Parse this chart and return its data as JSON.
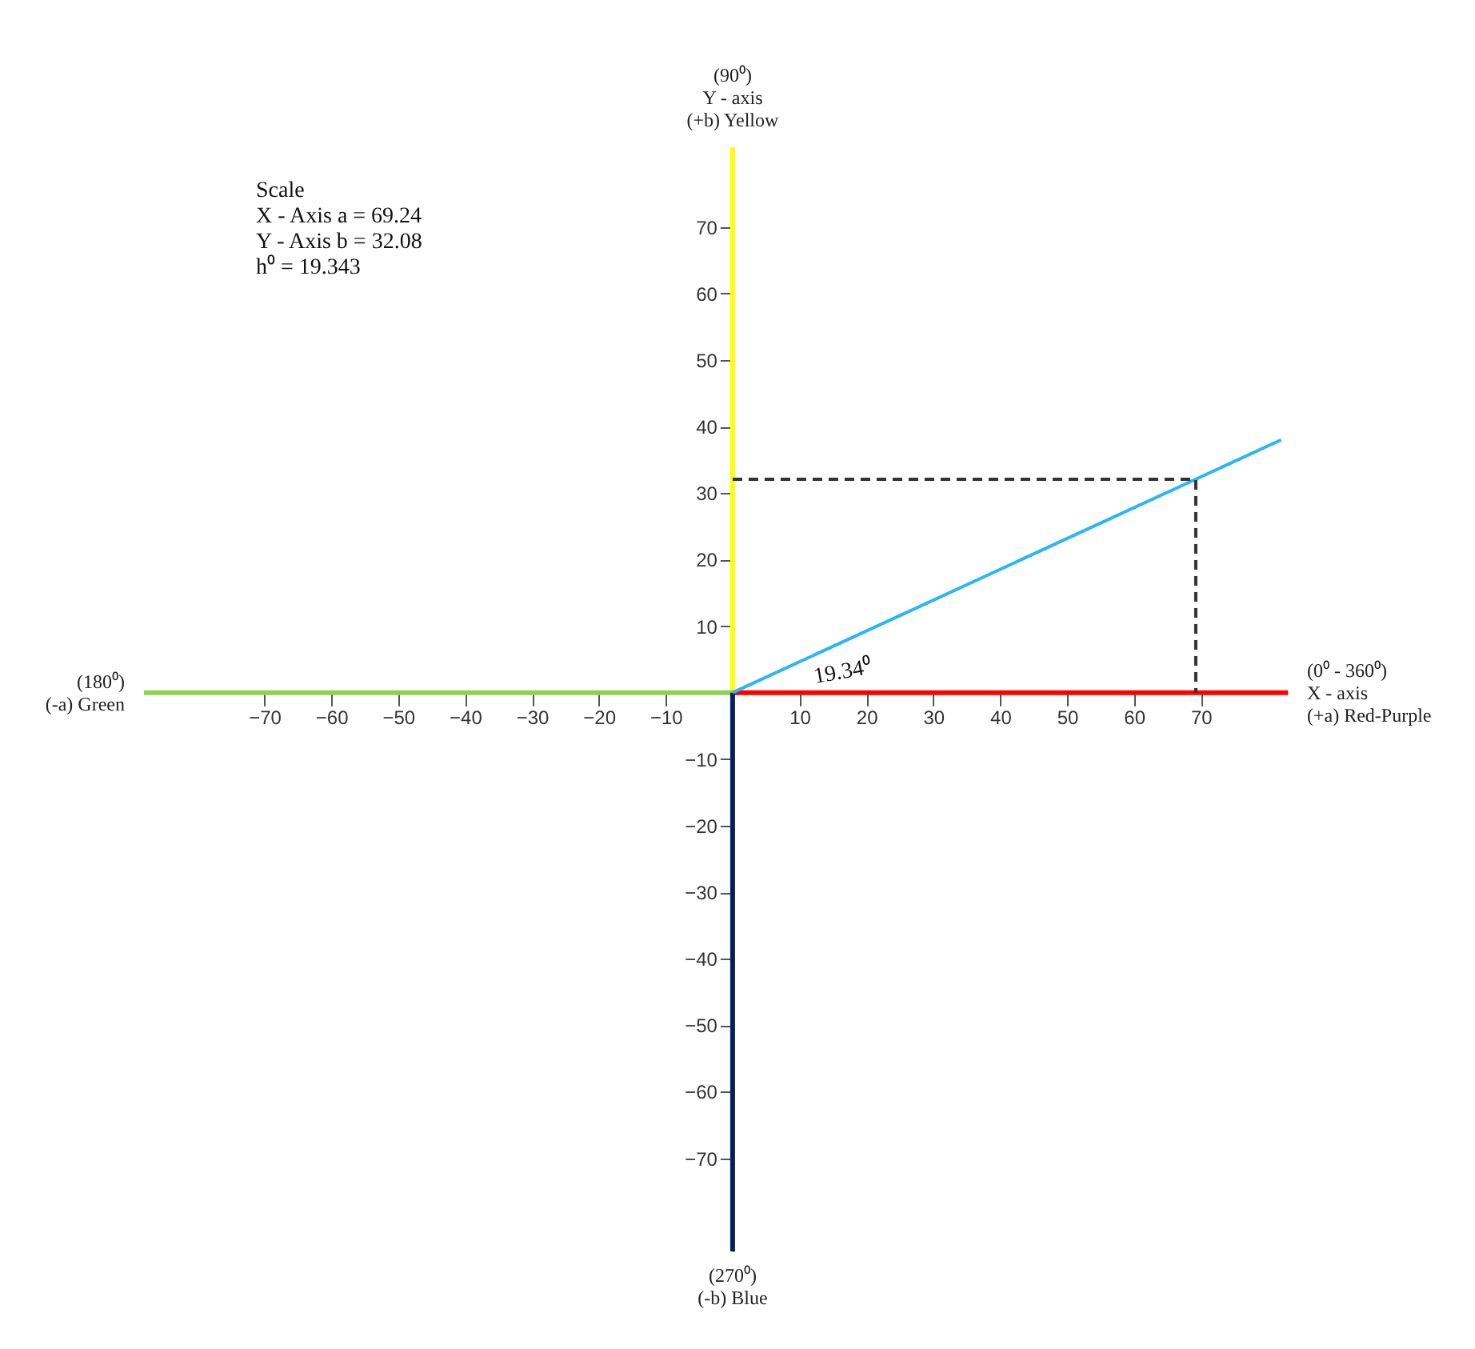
{
  "chart_data": {
    "type": "line",
    "xlim": [
      -88,
      83
    ],
    "ylim": [
      -84,
      82
    ],
    "xticks": [
      -70,
      -60,
      -50,
      -40,
      -30,
      -20,
      -10,
      10,
      20,
      30,
      40,
      50,
      60,
      70
    ],
    "yticks": [
      -70,
      -60,
      -50,
      -40,
      -30,
      -20,
      -10,
      10,
      20,
      30,
      40,
      50,
      60,
      70
    ],
    "grid": false,
    "marker": "none",
    "series": [
      {
        "name": "(0⁰ - 360⁰)\nX - axis\n(+a) Red-Purple",
        "color": "#ff0000",
        "x": [
          0,
          83
        ],
        "values": [
          0,
          0
        ]
      },
      {
        "name": "(90⁰)\nY - axis\n(+b) Yellow",
        "color": "#ffff00",
        "x": [
          0,
          0
        ],
        "values": [
          0,
          82
        ]
      },
      {
        "name": "(180⁰)\n(-a) Green",
        "color": "#92d050",
        "x": [
          0,
          -88
        ],
        "values": [
          0,
          0
        ]
      },
      {
        "name": "(270⁰)\n(-b) Blue",
        "color": "#002060",
        "x": [
          0,
          0
        ],
        "values": [
          0,
          -84
        ]
      },
      {
        "color": "#29b6f6",
        "x": [
          0,
          82
        ],
        "values": [
          0,
          38
        ]
      },
      {
        "color": "#333333",
        "line_style": "dashed",
        "x": [
          0,
          69.24,
          69.24
        ],
        "values": [
          32.08,
          32.08,
          0
        ]
      }
    ],
    "annotations": [
      "Scale\nX - Axis a = 69.24\nY - Axis b = 32.08\nh⁰ = 19.343",
      "19.34⁰"
    ]
  }
}
